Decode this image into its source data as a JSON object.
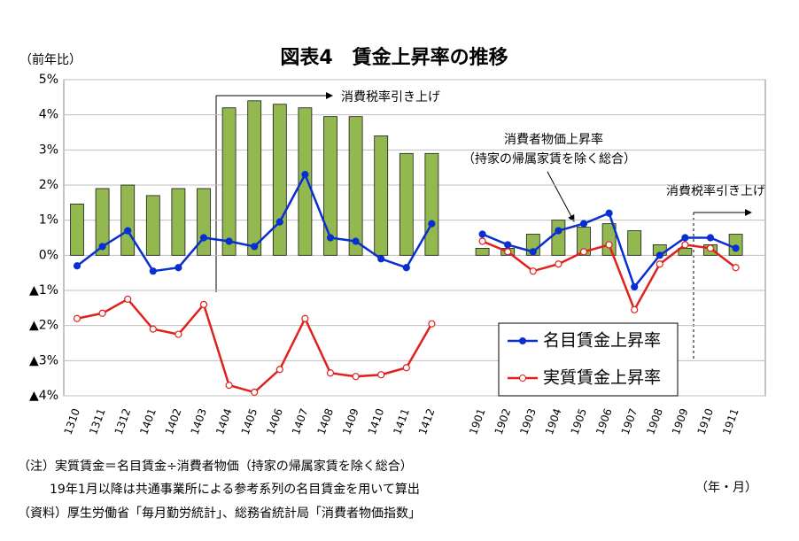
{
  "chart_data": {
    "type": "bar",
    "title": "図表4　賃金上昇率の推移",
    "y_unit_label": "（前年比）",
    "x_unit_label": "（年・月）",
    "categories": [
      "1310",
      "1311",
      "1312",
      "1401",
      "1402",
      "1403",
      "1404",
      "1405",
      "1406",
      "1407",
      "1408",
      "1409",
      "1410",
      "1411",
      "1412",
      null,
      "1901",
      "1902",
      "1903",
      "1904",
      "1905",
      "1906",
      "1907",
      "1908",
      "1909",
      "1910",
      "1911"
    ],
    "series": [
      {
        "type": "bar",
        "color": "#92b84f",
        "edgecolor": "#1a1a1a",
        "values": [
          1.46,
          1.9,
          2.0,
          1.7,
          1.9,
          1.9,
          4.2,
          4.4,
          4.3,
          4.2,
          3.95,
          3.95,
          3.4,
          2.9,
          2.9,
          null,
          0.2,
          0.2,
          0.6,
          1.0,
          0.8,
          0.9,
          0.7,
          0.3,
          0.2,
          0.3,
          0.6
        ]
      },
      {
        "type": "line",
        "name": "名目賃金上昇率",
        "color": "#0a2fd0",
        "marker": "filled",
        "values": [
          -0.3,
          0.25,
          0.7,
          -0.45,
          -0.35,
          0.5,
          0.4,
          0.25,
          0.95,
          2.3,
          0.5,
          0.4,
          -0.1,
          -0.35,
          0.9,
          null,
          0.6,
          0.3,
          0.1,
          0.7,
          0.9,
          1.2,
          -0.9,
          0.0,
          0.5,
          0.5,
          0.2
        ]
      },
      {
        "type": "line",
        "name": "実質賃金上昇率",
        "color": "#e0201b",
        "marker": "hollow",
        "values": [
          -1.8,
          -1.65,
          -1.25,
          -2.1,
          -2.25,
          -1.4,
          -3.7,
          -3.9,
          -3.25,
          -1.8,
          -3.35,
          -3.45,
          -3.4,
          -3.2,
          -1.95,
          null,
          0.4,
          0.1,
          -0.45,
          -0.25,
          0.1,
          0.3,
          -1.55,
          -0.25,
          0.3,
          0.2,
          -0.35
        ]
      }
    ],
    "ylim": [
      -4,
      5
    ],
    "yticks": [
      {
        "value": -4,
        "label": "▲4%"
      },
      {
        "value": -3,
        "label": "▲3%"
      },
      {
        "value": -2,
        "label": "▲2%"
      },
      {
        "value": -1,
        "label": "▲1%"
      },
      {
        "value": 0,
        "label": "0%"
      },
      {
        "value": 1,
        "label": "1%"
      },
      {
        "value": 2,
        "label": "2%"
      },
      {
        "value": 3,
        "label": "3%"
      },
      {
        "value": 4,
        "label": "4%"
      },
      {
        "value": 5,
        "label": "5%"
      }
    ],
    "grid": true,
    "legend": "lower right",
    "annotations": [
      "消費税率引き上げ",
      "消費者物価上昇率",
      "（持家の帰属家賃を除く総合）",
      "消費税率引き上げ"
    ],
    "notes": [
      "（注）実質賃金＝名目賃金÷消費者物価（持家の帰属家賃を除く総合）",
      "19年1月以降は共通事業所による参考系列の名目賃金を用いて算出",
      "（資料）厚生労働省「毎月勤労統計」、総務省統計局「消費者物価指数」"
    ]
  }
}
